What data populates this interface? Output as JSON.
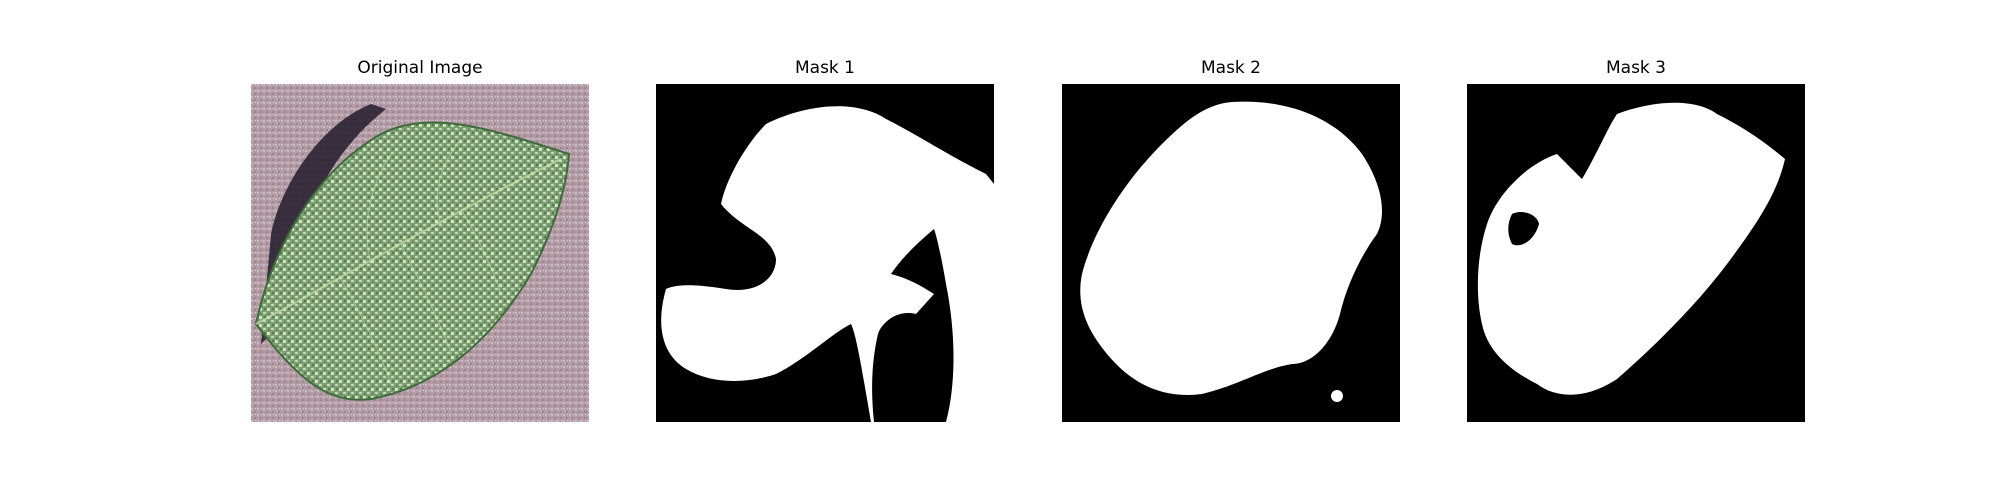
{
  "figure": {
    "panels": [
      {
        "title": "Original Image"
      },
      {
        "title": "Mask 1"
      },
      {
        "title": "Mask 2"
      },
      {
        "title": "Mask 3"
      }
    ]
  },
  "colors": {
    "background": "#ffffff",
    "mask_background": "#000000",
    "mask_foreground": "#ffffff",
    "leaf_green": "#6f9a63",
    "leaf_dark_green": "#3f6a3b",
    "ground_pink": "#b8a0aa",
    "shadow": "#2a2030"
  }
}
